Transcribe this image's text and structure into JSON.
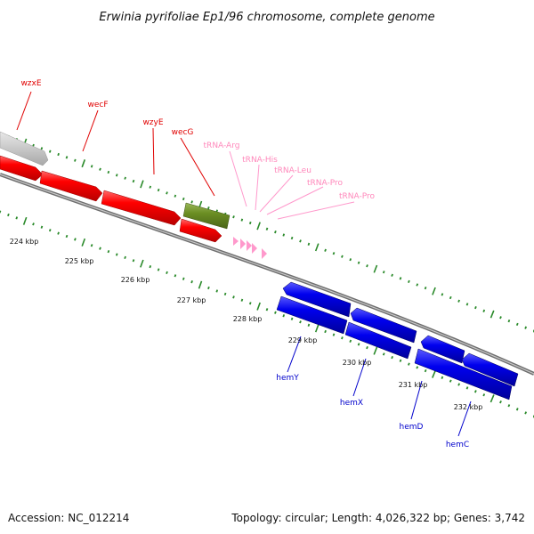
{
  "title": "Erwinia pyrifoliae Ep1/96 chromosome, complete genome",
  "footer": {
    "accession": "Accession: NC_012214",
    "summary": "Topology: circular; Length: 4,026,322 bp; Genes: 3,742"
  },
  "colors": {
    "red_gene": "#ff0000",
    "blue_gene": "#0000ee",
    "green_gene": "#6b8e23",
    "grey_gene": "#c8c8c8",
    "trna": "#ff99cc",
    "tick": "#2a8a2a",
    "backbone": "#808080"
  },
  "ticks": [
    "224 kbp",
    "225 kbp",
    "226 kbp",
    "227 kbp",
    "228 kbp",
    "229 kbp",
    "230 kbp",
    "231 kbp",
    "232 kbp"
  ],
  "genes_forward": [
    "wzxE",
    "wecF",
    "wzyE",
    "wecG"
  ],
  "trnas": [
    "tRNA-Arg",
    "tRNA-His",
    "tRNA-Leu",
    "tRNA-Pro",
    "tRNA-Pro"
  ],
  "genes_reverse": [
    "hemY",
    "hemX",
    "hemD",
    "hemC"
  ]
}
